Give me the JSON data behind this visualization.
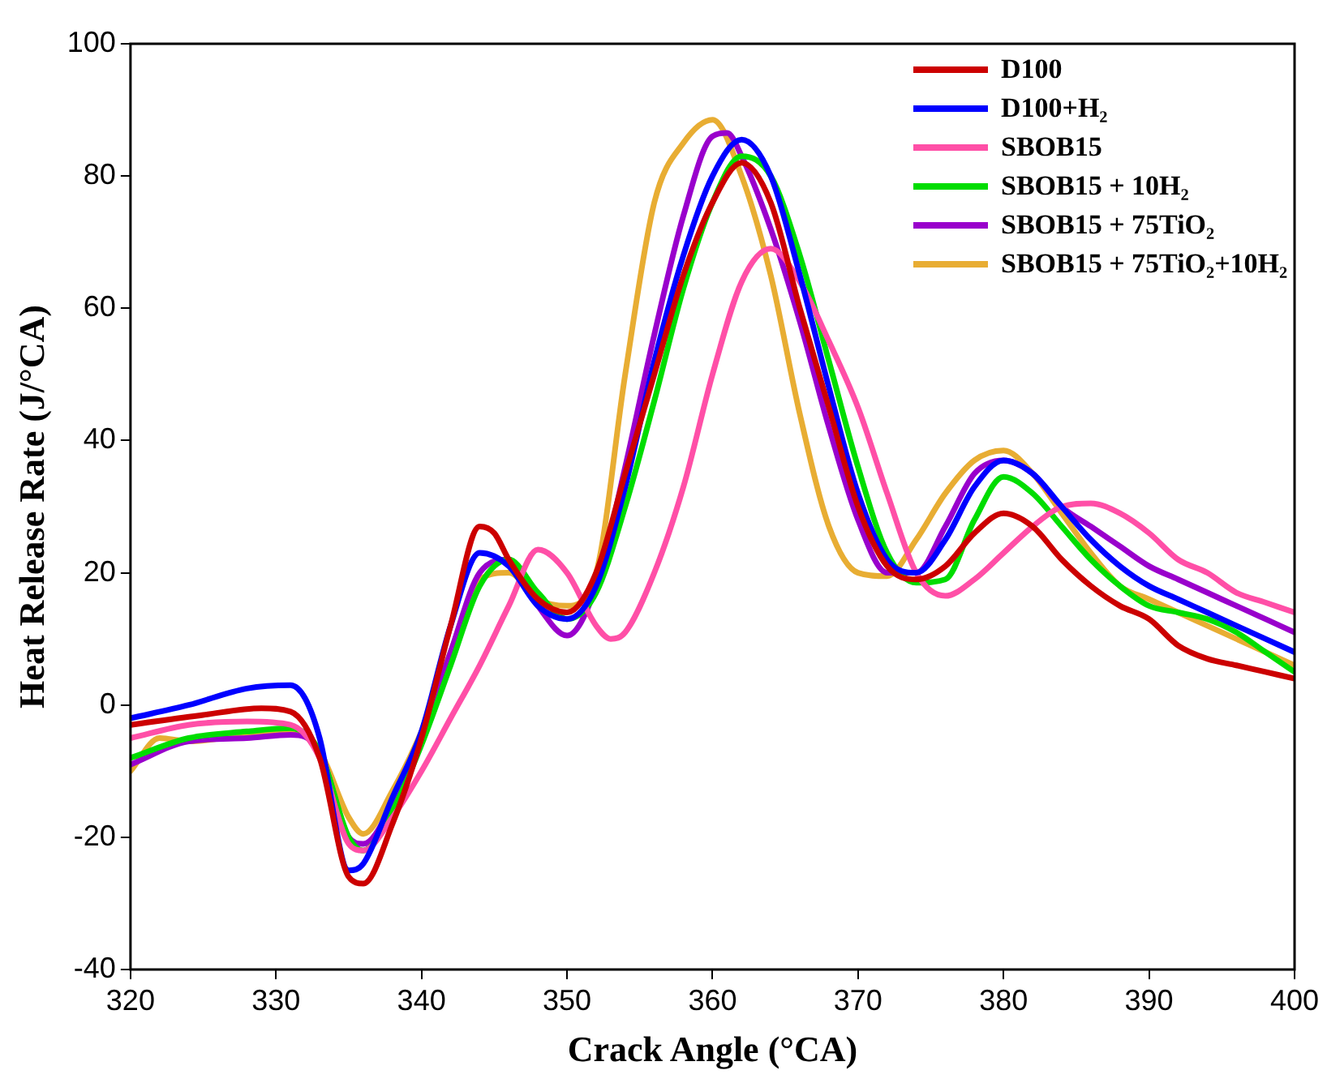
{
  "chart_data": {
    "type": "line",
    "xlabel": "Crack Angle (°CA)",
    "ylabel": "Heat Release Rate (J/°CA)",
    "xlim": [
      320,
      400
    ],
    "xticks": [
      320,
      330,
      340,
      350,
      360,
      370,
      380,
      390,
      400
    ],
    "ylim": [
      -40,
      100
    ],
    "yticks": [
      -40,
      -20,
      0,
      20,
      40,
      60,
      80,
      100
    ],
    "grid": false,
    "legend": "top right",
    "marker": "none",
    "line_style": "solid",
    "series": [
      {
        "name": "D100",
        "color": "#cc0000",
        "x": [
          320,
          325,
          329,
          331,
          333,
          335,
          336,
          338,
          340,
          342,
          344,
          345,
          346,
          348,
          350,
          352,
          354,
          356,
          358,
          360,
          362,
          364,
          366,
          368,
          370,
          372,
          374,
          376,
          378,
          380,
          382,
          384,
          386,
          388,
          390,
          392,
          394,
          396,
          398,
          400
        ],
        "values": [
          -3,
          -1.5,
          -0.5,
          -1,
          -8,
          -26,
          -27,
          -18,
          -5,
          12,
          27,
          26,
          22,
          16,
          14,
          20,
          35,
          50,
          65,
          76,
          82,
          76,
          60,
          45,
          30,
          21,
          19,
          21,
          26,
          29,
          27,
          22,
          18,
          15,
          13,
          9,
          7,
          6,
          5,
          4
        ]
      },
      {
        "name": "D100+H₂",
        "color": "#0000ff",
        "x": [
          320,
          324,
          328,
          331,
          332,
          333,
          335,
          336,
          338,
          340,
          342,
          344,
          346,
          348,
          350,
          352,
          354,
          356,
          358,
          360,
          362,
          364,
          366,
          368,
          370,
          372,
          374,
          376,
          378,
          380,
          382,
          384,
          386,
          388,
          390,
          392,
          394,
          396,
          398,
          400
        ],
        "values": [
          -2,
          0,
          2.5,
          3,
          1,
          -5,
          -25,
          -24,
          -14,
          -4,
          12,
          23,
          21,
          15,
          13,
          18,
          33,
          52,
          68,
          80,
          85.5,
          80,
          65,
          48,
          32,
          22,
          20,
          25,
          33,
          37,
          35,
          30,
          25,
          21,
          18,
          16,
          14,
          12,
          10,
          8
        ]
      },
      {
        "name": "SBOB15",
        "color": "#ff4fa7",
        "x": [
          320,
          324,
          328,
          331,
          333,
          335,
          336,
          338,
          340,
          342,
          344,
          346,
          348,
          350,
          352,
          353,
          354,
          356,
          358,
          360,
          362,
          364,
          366,
          368,
          370,
          372,
          374,
          376,
          378,
          380,
          382,
          384,
          386,
          388,
          390,
          392,
          394,
          396,
          398,
          400
        ],
        "values": [
          -5,
          -3,
          -2.5,
          -3,
          -8,
          -21,
          -22,
          -17,
          -10,
          -2,
          6,
          15,
          23.5,
          20,
          12,
          10,
          11,
          20,
          33,
          50,
          64,
          69,
          64,
          55,
          45,
          32,
          20,
          16.5,
          19,
          23,
          27,
          30,
          30.5,
          29,
          26,
          22,
          20,
          17,
          15.5,
          14
        ]
      },
      {
        "name": "SBOB15 + 10H₂",
        "color": "#00dd00",
        "x": [
          320,
          324,
          328,
          331,
          333,
          335,
          336,
          338,
          340,
          342,
          344,
          346,
          348,
          350,
          352,
          354,
          356,
          358,
          360,
          362,
          364,
          366,
          368,
          370,
          372,
          374,
          376,
          378,
          380,
          382,
          384,
          386,
          388,
          390,
          392,
          394,
          396,
          398,
          400
        ],
        "values": [
          -8,
          -5,
          -4,
          -3.5,
          -7,
          -20,
          -22,
          -16,
          -6,
          6,
          18,
          22,
          17,
          13,
          17,
          30,
          46,
          63,
          76,
          83,
          80,
          68,
          52,
          36,
          23,
          18.5,
          19,
          28,
          34.5,
          32,
          27,
          22,
          18,
          15,
          14,
          13,
          11,
          8,
          5
        ]
      },
      {
        "name": "SBOB15 + 75TiO₂",
        "color": "#9900cc",
        "x": [
          320,
          324,
          328,
          331,
          333,
          335,
          336,
          338,
          340,
          342,
          344,
          346,
          348,
          350,
          352,
          354,
          356,
          358,
          360,
          361,
          362,
          364,
          366,
          368,
          370,
          372,
          374,
          376,
          378,
          380,
          382,
          384,
          386,
          388,
          390,
          392,
          394,
          396,
          398,
          400
        ],
        "values": [
          -9,
          -5.5,
          -5,
          -4.5,
          -7,
          -20,
          -21,
          -15,
          -5,
          8,
          20,
          22,
          15,
          10.5,
          18,
          36,
          56,
          74,
          86,
          86.5,
          83,
          72,
          58,
          42,
          28,
          20,
          20,
          27,
          35,
          37,
          35,
          30,
          27,
          24,
          21,
          19,
          17,
          15,
          13,
          11
        ]
      },
      {
        "name": "SBOB15 + 75TiO₂+10H₂",
        "color": "#e8ad33",
        "x": [
          320,
          322,
          324,
          328,
          331,
          333,
          335,
          336,
          338,
          340,
          342,
          344,
          346,
          348,
          350,
          352,
          354,
          356,
          358,
          360,
          362,
          364,
          366,
          368,
          370,
          372,
          374,
          376,
          378,
          380,
          382,
          384,
          386,
          388,
          390,
          392,
          394,
          396,
          398,
          400
        ],
        "values": [
          -10,
          -5,
          -5.5,
          -4.5,
          -4,
          -7,
          -17,
          -19.5,
          -13,
          -4,
          8,
          19,
          20,
          16,
          15,
          20,
          50,
          76,
          85,
          88.5,
          80,
          65,
          44,
          27,
          20,
          19.5,
          25,
          32,
          37,
          38.5,
          35,
          29,
          23,
          18,
          16,
          14,
          12,
          10,
          8,
          6
        ]
      }
    ]
  }
}
